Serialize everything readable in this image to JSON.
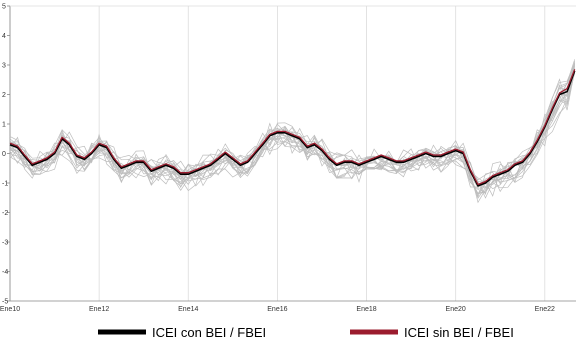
{
  "chart_data": {
    "type": "line",
    "title": "",
    "xlabel": "",
    "ylabel": "",
    "xlim": [
      2010.0,
      2022.7
    ],
    "ylim": [
      -5,
      5
    ],
    "y_ticks": [
      -5,
      -4,
      -3,
      -2,
      -1,
      0,
      1,
      2,
      3,
      4,
      5
    ],
    "x_ticks": [
      {
        "value": 2010,
        "label": "Ene10"
      },
      {
        "value": 2012,
        "label": "Ene12"
      },
      {
        "value": 2014,
        "label": "Ene14"
      },
      {
        "value": 2016,
        "label": "Ene16"
      },
      {
        "value": 2018,
        "label": "Ene18"
      },
      {
        "value": 2020,
        "label": "Ene20"
      },
      {
        "value": 2022,
        "label": "Ene22"
      }
    ],
    "grid": "vertical",
    "legend_position": "bottom",
    "colors": {
      "series_black": "#000000",
      "series_red": "#9b1c2e",
      "bundle": "#bdbdbd",
      "grid": "#dcdcdc",
      "axis": "#888888"
    },
    "x": [
      2010.0,
      2010.17,
      2010.33,
      2010.5,
      2010.67,
      2010.83,
      2011.0,
      2011.17,
      2011.33,
      2011.5,
      2011.67,
      2011.83,
      2012.0,
      2012.17,
      2012.33,
      2012.5,
      2012.67,
      2012.83,
      2013.0,
      2013.17,
      2013.33,
      2013.5,
      2013.67,
      2013.83,
      2014.0,
      2014.17,
      2014.33,
      2014.5,
      2014.67,
      2014.83,
      2015.0,
      2015.17,
      2015.33,
      2015.5,
      2015.67,
      2015.83,
      2016.0,
      2016.17,
      2016.33,
      2016.5,
      2016.67,
      2016.83,
      2017.0,
      2017.17,
      2017.33,
      2017.5,
      2017.67,
      2017.83,
      2018.0,
      2018.17,
      2018.33,
      2018.5,
      2018.67,
      2018.83,
      2019.0,
      2019.17,
      2019.33,
      2019.5,
      2019.67,
      2019.83,
      2020.0,
      2020.17,
      2020.33,
      2020.5,
      2020.67,
      2020.83,
      2021.0,
      2021.17,
      2021.33,
      2021.5,
      2021.67,
      2021.83,
      2022.0,
      2022.17,
      2022.33,
      2022.5,
      2022.67
    ],
    "series": [
      {
        "name": "ICEI con BEI / FBEI",
        "values": [
          0.3,
          0.2,
          -0.1,
          -0.4,
          -0.3,
          -0.2,
          0.0,
          0.5,
          0.3,
          -0.1,
          -0.2,
          0.0,
          0.3,
          0.2,
          -0.2,
          -0.5,
          -0.4,
          -0.3,
          -0.3,
          -0.6,
          -0.5,
          -0.4,
          -0.5,
          -0.7,
          -0.7,
          -0.6,
          -0.5,
          -0.4,
          -0.2,
          0.0,
          -0.2,
          -0.4,
          -0.3,
          0.0,
          0.3,
          0.6,
          0.7,
          0.7,
          0.6,
          0.5,
          0.2,
          0.3,
          0.1,
          -0.2,
          -0.4,
          -0.3,
          -0.3,
          -0.4,
          -0.3,
          -0.2,
          -0.1,
          -0.2,
          -0.3,
          -0.3,
          -0.2,
          -0.1,
          0.0,
          -0.1,
          -0.1,
          0.0,
          0.1,
          0.0,
          -0.6,
          -1.1,
          -1.0,
          -0.8,
          -0.7,
          -0.6,
          -0.4,
          -0.3,
          0.0,
          0.4,
          0.9,
          1.5,
          2.0,
          2.1,
          2.8
        ]
      },
      {
        "name": "ICEI sin BEI / FBEI",
        "values": [
          0.35,
          0.25,
          -0.05,
          -0.35,
          -0.25,
          -0.15,
          0.05,
          0.55,
          0.35,
          -0.05,
          -0.15,
          0.05,
          0.35,
          0.25,
          -0.15,
          -0.45,
          -0.35,
          -0.25,
          -0.25,
          -0.55,
          -0.45,
          -0.35,
          -0.45,
          -0.65,
          -0.65,
          -0.55,
          -0.45,
          -0.35,
          -0.15,
          0.05,
          -0.15,
          -0.35,
          -0.25,
          0.05,
          0.35,
          0.65,
          0.75,
          0.75,
          0.65,
          0.55,
          0.25,
          0.35,
          0.15,
          -0.15,
          -0.35,
          -0.25,
          -0.25,
          -0.35,
          -0.25,
          -0.15,
          -0.05,
          -0.15,
          -0.25,
          -0.25,
          -0.15,
          -0.05,
          0.05,
          -0.05,
          -0.05,
          0.05,
          0.15,
          0.05,
          -0.55,
          -1.05,
          -0.95,
          -0.75,
          -0.65,
          -0.55,
          -0.35,
          -0.25,
          0.05,
          0.45,
          0.95,
          1.55,
          2.05,
          2.2,
          2.85
        ]
      }
    ]
  }
}
